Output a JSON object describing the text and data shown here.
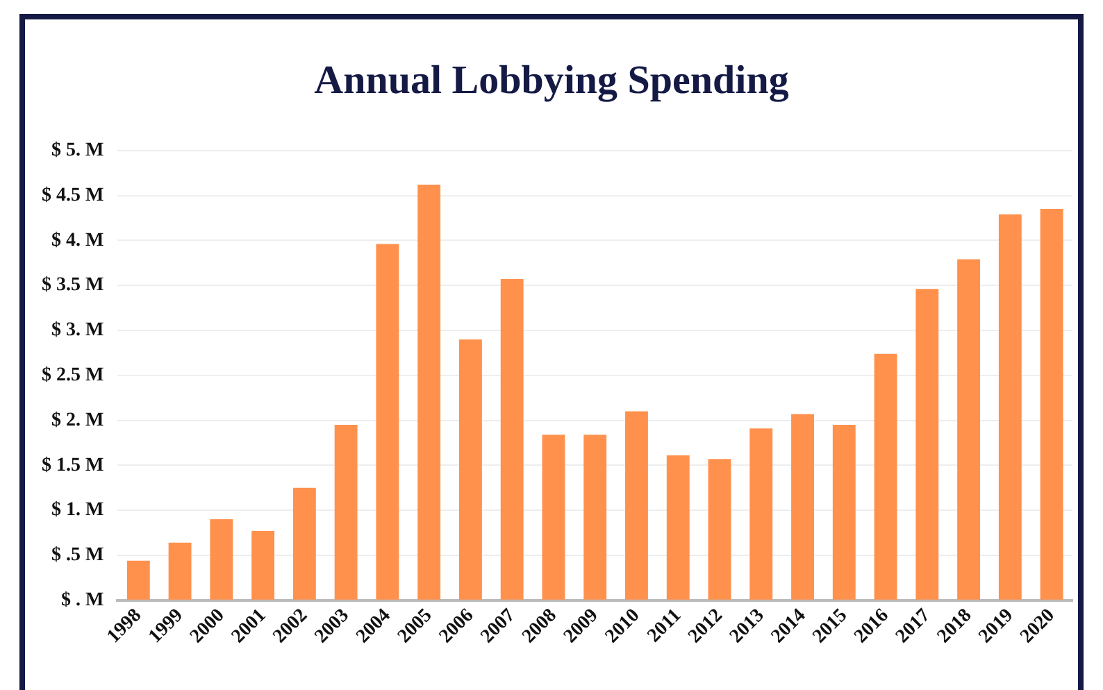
{
  "chart_data": {
    "type": "bar",
    "title": "Annual Lobbying Spending",
    "categories": [
      "1998",
      "1999",
      "2000",
      "2001",
      "2002",
      "2003",
      "2004",
      "2005",
      "2006",
      "2007",
      "2008",
      "2009",
      "2010",
      "2011",
      "2012",
      "2013",
      "2014",
      "2015",
      "2016",
      "2017",
      "2018",
      "2019",
      "2020"
    ],
    "values": [
      0.44,
      0.64,
      0.9,
      0.77,
      1.25,
      1.95,
      3.96,
      4.62,
      2.9,
      3.57,
      1.84,
      1.84,
      2.1,
      1.61,
      1.57,
      1.91,
      2.07,
      1.95,
      2.74,
      3.46,
      3.79,
      4.29,
      4.35
    ],
    "color": "#ff914d",
    "ylim": [
      0,
      5
    ],
    "yticks": [
      {
        "value": 0,
        "label": "$ . M"
      },
      {
        "value": 0.5,
        "label": "$ .5 M"
      },
      {
        "value": 1,
        "label": "$ 1. M"
      },
      {
        "value": 1.5,
        "label": "$ 1.5 M"
      },
      {
        "value": 2,
        "label": "$ 2. M"
      },
      {
        "value": 2.5,
        "label": "$ 2.5 M"
      },
      {
        "value": 3,
        "label": "$ 3. M"
      },
      {
        "value": 3.5,
        "label": "$ 3.5 M"
      },
      {
        "value": 4,
        "label": "$ 4. M"
      },
      {
        "value": 4.5,
        "label": "$ 4.5 M"
      },
      {
        "value": 5,
        "label": "$ 5. M"
      }
    ],
    "grid": "y"
  }
}
